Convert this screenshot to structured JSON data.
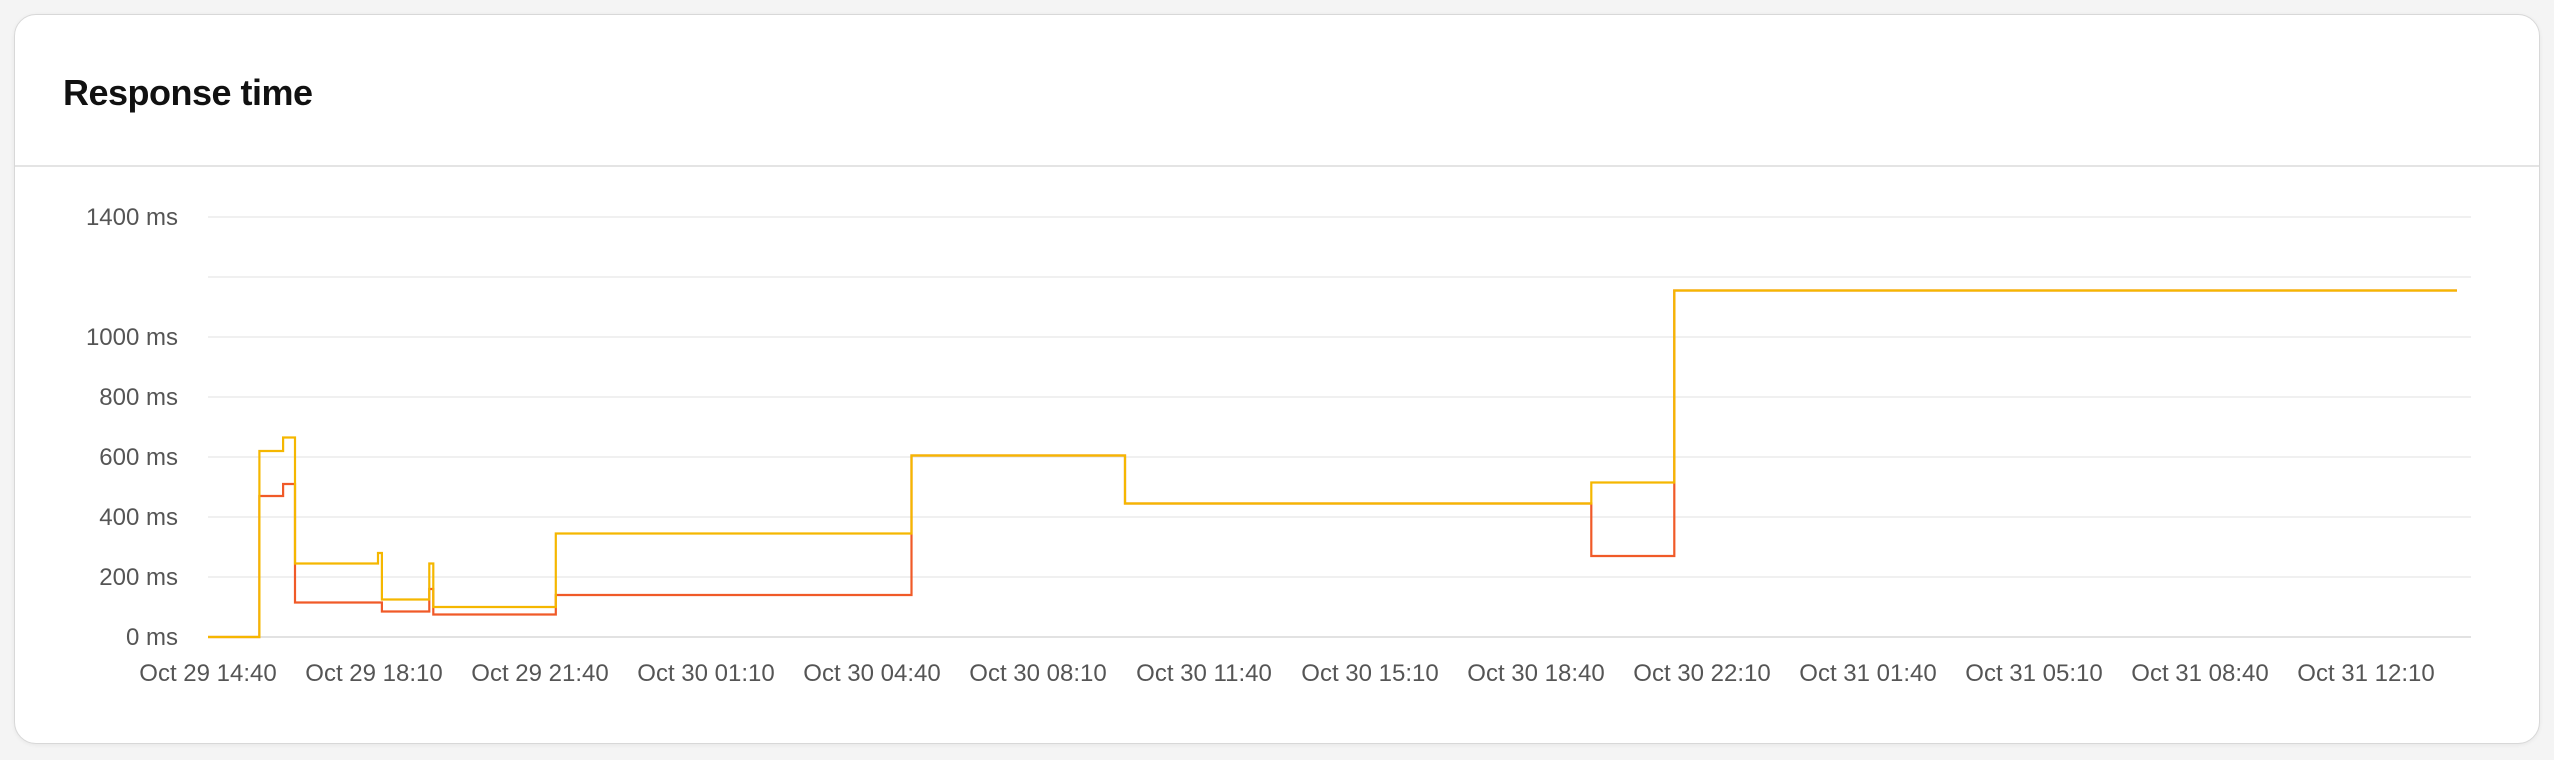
{
  "card": {
    "title": "Response time"
  },
  "chart_data": {
    "type": "line",
    "step": true,
    "title": "Response time",
    "xlabel": "",
    "ylabel": "",
    "y_unit": "ms",
    "y_ticks": [
      0,
      200,
      400,
      600,
      800,
      1000,
      1400
    ],
    "y_tick_labels": [
      "0 ms",
      "200 ms",
      "400 ms",
      "600 ms",
      "800 ms",
      "1000 ms",
      "1400 ms"
    ],
    "ylim": [
      0,
      1400
    ],
    "x_ticks": [
      "Oct 29 14:40",
      "Oct 29 18:10",
      "Oct 29 21:40",
      "Oct 30 01:10",
      "Oct 30 04:40",
      "Oct 30 08:10",
      "Oct 30 11:40",
      "Oct 30 15:10",
      "Oct 30 18:40",
      "Oct 30 22:10",
      "Oct 31 01:40",
      "Oct 31 05:10",
      "Oct 31 08:40",
      "Oct 31 12:10"
    ],
    "xlim": [
      "Oct 29 14:40",
      "Oct 31 14:05"
    ],
    "grid": true,
    "legend": false,
    "series": [
      {
        "color": "#f5b700",
        "points": [
          [
            "Oct 29 14:40",
            0
          ],
          [
            "Oct 29 15:45",
            620
          ],
          [
            "Oct 29 16:15",
            665
          ],
          [
            "Oct 29 16:30",
            245
          ],
          [
            "Oct 29 18:15",
            280
          ],
          [
            "Oct 29 18:20",
            125
          ],
          [
            "Oct 29 19:20",
            245
          ],
          [
            "Oct 29 19:25",
            100
          ],
          [
            "Oct 29 22:00",
            345
          ],
          [
            "Oct 30 05:30",
            605
          ],
          [
            "Oct 30 10:00",
            445
          ],
          [
            "Oct 30 19:50",
            515
          ],
          [
            "Oct 30 21:35",
            1155
          ],
          [
            "Oct 31 14:05",
            1155
          ]
        ]
      },
      {
        "color": "#f05a28",
        "points": [
          [
            "Oct 29 14:40",
            0
          ],
          [
            "Oct 29 15:45",
            470
          ],
          [
            "Oct 29 16:15",
            510
          ],
          [
            "Oct 29 16:30",
            115
          ],
          [
            "Oct 29 18:20",
            85
          ],
          [
            "Oct 29 19:20",
            160
          ],
          [
            "Oct 29 19:25",
            75
          ],
          [
            "Oct 29 22:00",
            140
          ],
          [
            "Oct 30 05:30",
            605
          ],
          [
            "Oct 30 10:00",
            445
          ],
          [
            "Oct 30 19:50",
            270
          ],
          [
            "Oct 30 21:35",
            1155
          ],
          [
            "Oct 31 14:05",
            1155
          ]
        ]
      }
    ]
  }
}
